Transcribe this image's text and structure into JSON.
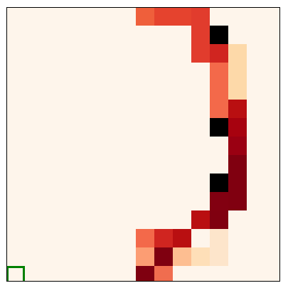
{
  "grid": {
    "rows": 15,
    "cols": 15,
    "background": "#fef5eb",
    "legend": {
      "1": "#ef5f3b",
      "2": "#e5432e",
      "3": "#e13c2d",
      "4": "#000000",
      "5": "#d02520",
      "6": "#fdd9a9",
      "7": "#f3694a",
      "8": "#b90f11",
      "9": "#a7020f",
      "10": "#9a0012",
      "11": "#800010",
      "12": "#820011",
      "13": "#fde5cb",
      "14": "#fc9d73",
      "15": "#7f0010",
      "16": "#fdbe91",
      "17": "#fedfb8",
      "18": "#f06d4f"
    },
    "cells": [
      [
        0,
        0,
        0,
        0,
        0,
        0,
        0,
        1,
        2,
        2,
        3,
        0,
        0,
        0,
        0
      ],
      [
        0,
        0,
        0,
        0,
        0,
        0,
        0,
        0,
        0,
        0,
        3,
        4,
        0,
        0,
        0
      ],
      [
        0,
        0,
        0,
        0,
        0,
        0,
        0,
        0,
        0,
        0,
        3,
        5,
        6,
        0,
        0
      ],
      [
        0,
        0,
        0,
        0,
        0,
        0,
        0,
        0,
        0,
        0,
        0,
        7,
        6,
        0,
        0
      ],
      [
        0,
        0,
        0,
        0,
        0,
        0,
        0,
        0,
        0,
        0,
        0,
        7,
        6,
        0,
        0
      ],
      [
        0,
        0,
        0,
        0,
        0,
        0,
        0,
        0,
        0,
        0,
        0,
        7,
        8,
        0,
        0
      ],
      [
        0,
        0,
        0,
        0,
        0,
        0,
        0,
        0,
        0,
        0,
        0,
        4,
        9,
        0,
        0
      ],
      [
        0,
        0,
        0,
        0,
        0,
        0,
        0,
        0,
        0,
        0,
        0,
        0,
        10,
        0,
        0
      ],
      [
        0,
        0,
        0,
        0,
        0,
        0,
        0,
        0,
        0,
        0,
        0,
        0,
        11,
        0,
        0
      ],
      [
        0,
        0,
        0,
        0,
        0,
        0,
        0,
        0,
        0,
        0,
        0,
        4,
        11,
        0,
        0
      ],
      [
        0,
        0,
        0,
        0,
        0,
        0,
        0,
        0,
        0,
        0,
        0,
        12,
        11,
        0,
        0
      ],
      [
        0,
        0,
        0,
        0,
        0,
        0,
        0,
        0,
        0,
        0,
        8,
        11,
        0,
        0,
        0
      ],
      [
        0,
        0,
        0,
        0,
        0,
        0,
        0,
        7,
        5,
        8,
        0,
        13,
        0,
        0,
        0
      ],
      [
        0,
        0,
        0,
        0,
        0,
        0,
        0,
        14,
        15,
        16,
        17,
        13,
        0,
        0,
        0
      ],
      [
        0,
        0,
        0,
        0,
        0,
        0,
        0,
        15,
        18,
        0,
        0,
        0,
        0,
        0,
        0
      ]
    ]
  },
  "cursor": {
    "row": 14,
    "col": 0,
    "color": "#008000"
  }
}
